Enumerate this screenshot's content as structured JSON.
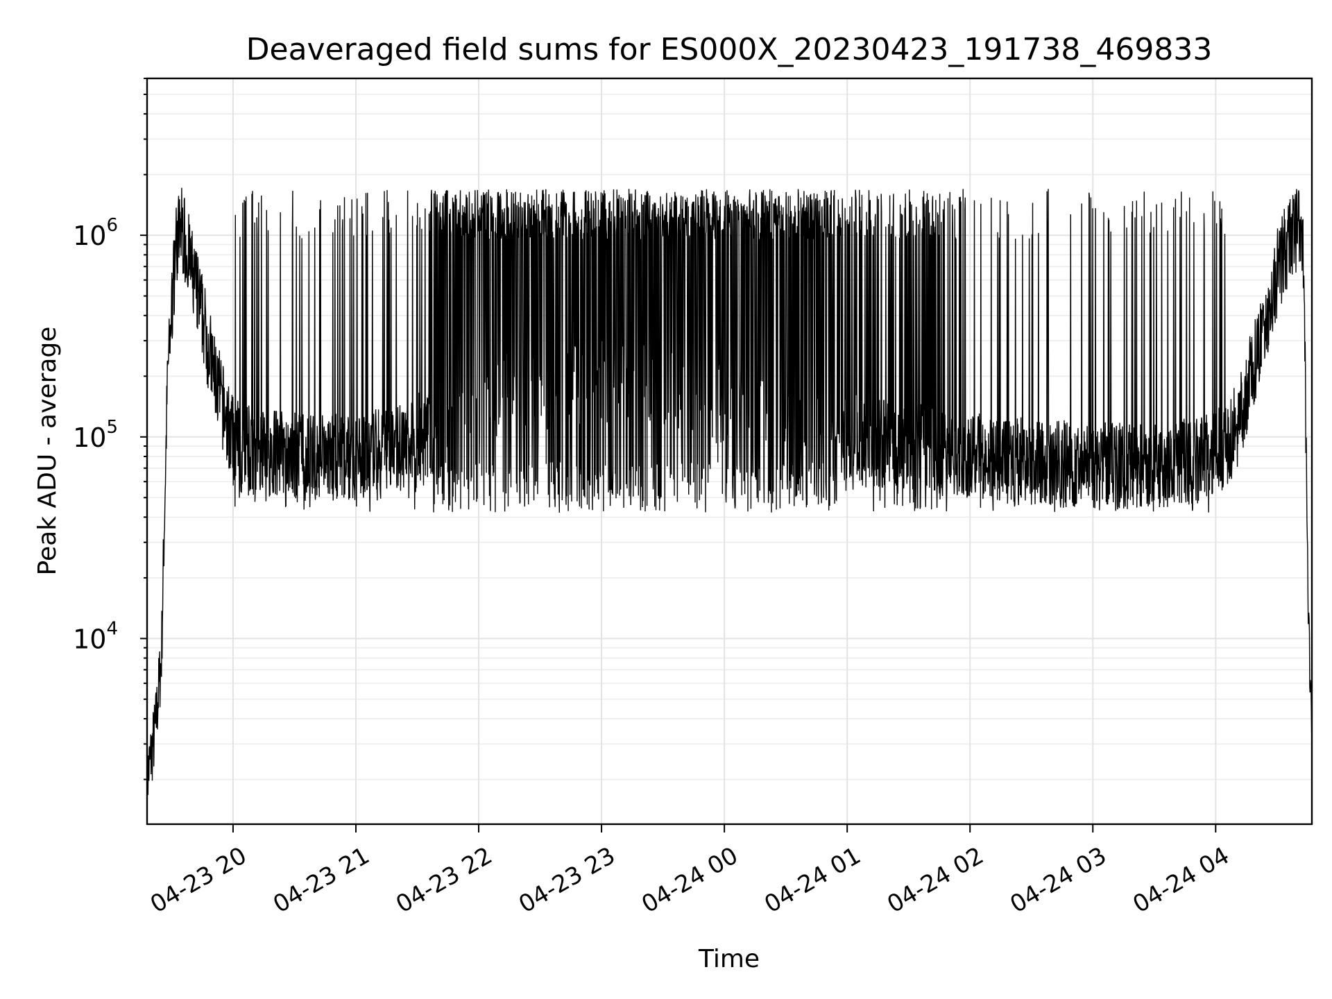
{
  "chart_data": {
    "type": "line",
    "title": "Deaveraged field sums for ES000X_20230423_191738_469833",
    "xlabel": "Time",
    "ylabel": "Peak ADU - average",
    "yscale": "log",
    "grid": true,
    "xlim": [
      "2023-04-23 19:18",
      "2023-04-24 04:47"
    ],
    "ylim": [
      1200,
      6000000
    ],
    "xticks": [
      "04-23 20",
      "04-23 21",
      "04-23 22",
      "04-23 23",
      "04-24 00",
      "04-24 01",
      "04-24 02",
      "04-24 03",
      "04-24 04"
    ],
    "xtick_rotation_deg": 30,
    "yticks": [
      {
        "value": 10000,
        "base": "10",
        "exp": "4"
      },
      {
        "value": 100000,
        "base": "10",
        "exp": "5"
      },
      {
        "value": 1000000,
        "base": "10",
        "exp": "6"
      }
    ],
    "series": [
      {
        "color": "#000000",
        "envelope": {
          "time": [
            "2023-04-23 19:18",
            "2023-04-23 19:22",
            "2023-04-23 19:25",
            "2023-04-23 19:28",
            "2023-04-23 19:32",
            "2023-04-23 19:35",
            "2023-04-23 19:40",
            "2023-04-23 19:45",
            "2023-04-23 19:50",
            "2023-04-23 19:55",
            "2023-04-23 20:00",
            "2023-04-23 20:15",
            "2023-04-23 20:30",
            "2023-04-23 21:00",
            "2023-04-23 21:15",
            "2023-04-23 21:40",
            "2023-04-23 22:00",
            "2023-04-23 22:30",
            "2023-04-23 23:00",
            "2023-04-23 23:30",
            "2023-04-24 00:00",
            "2023-04-24 00:30",
            "2023-04-24 01:00",
            "2023-04-24 01:30",
            "2023-04-24 02:00",
            "2023-04-24 02:30",
            "2023-04-24 03:00",
            "2023-04-24 03:30",
            "2023-04-24 04:00",
            "2023-04-24 04:10",
            "2023-04-24 04:20",
            "2023-04-24 04:30",
            "2023-04-24 04:35",
            "2023-04-24 04:40",
            "2023-04-24 04:43",
            "2023-04-24 04:45",
            "2023-04-24 04:47"
          ],
          "baseline": [
            2000,
            3500,
            8000,
            200000,
            900000,
            1100000,
            650000,
            400000,
            220000,
            140000,
            95000,
            85000,
            80000,
            80000,
            85000,
            110000,
            150000,
            180000,
            180000,
            170000,
            150000,
            120000,
            100000,
            90000,
            80000,
            75000,
            72000,
            72000,
            80000,
            110000,
            250000,
            650000,
            900000,
            1100000,
            800000,
            20000,
            3000
          ]
        },
        "spike_peak": 1700000,
        "noise_floor": 50000
      }
    ]
  }
}
